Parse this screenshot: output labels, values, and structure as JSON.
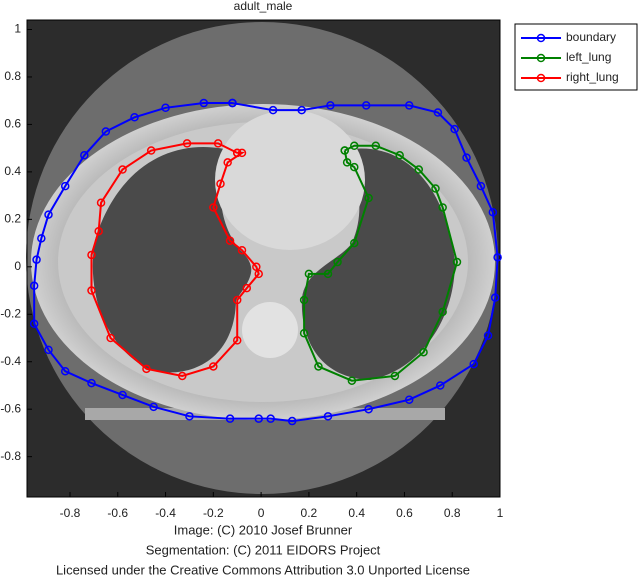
{
  "chart_data": {
    "type": "line",
    "title": "adult_male",
    "xlim": [
      -0.98,
      1
    ],
    "ylim": [
      -0.97,
      1.04
    ],
    "xticks": [
      -0.8,
      -0.6,
      -0.4,
      -0.2,
      0,
      0.2,
      0.4,
      0.6,
      0.8,
      1
    ],
    "yticks": [
      -0.8,
      -0.6,
      -0.4,
      -0.2,
      0,
      0.2,
      0.4,
      0.6,
      0.8,
      1
    ],
    "legend": "upper right",
    "series": [
      {
        "name": "boundary",
        "color": "#0000ff",
        "x": [
          -0.12,
          -0.24,
          -0.4,
          -0.53,
          -0.65,
          -0.74,
          -0.82,
          -0.89,
          -0.92,
          -0.94,
          -0.95,
          -0.95,
          -0.89,
          -0.82,
          -0.71,
          -0.58,
          -0.45,
          -0.3,
          -0.13,
          -0.01,
          0.04,
          0.13,
          0.28,
          0.45,
          0.62,
          0.75,
          0.89,
          0.95,
          0.98,
          0.99,
          0.97,
          0.92,
          0.86,
          0.81,
          0.74,
          0.62,
          0.44,
          0.29,
          0.17,
          0.05,
          -0.12
        ],
        "values": [
          0.69,
          0.69,
          0.67,
          0.63,
          0.57,
          0.47,
          0.34,
          0.22,
          0.12,
          0.03,
          -0.08,
          -0.24,
          -0.35,
          -0.44,
          -0.49,
          -0.54,
          -0.59,
          -0.63,
          -0.64,
          -0.64,
          -0.64,
          -0.65,
          -0.63,
          -0.6,
          -0.56,
          -0.5,
          -0.41,
          -0.29,
          -0.13,
          0.04,
          0.23,
          0.34,
          0.46,
          0.58,
          0.65,
          0.68,
          0.68,
          0.68,
          0.66,
          0.66,
          0.69
        ]
      },
      {
        "name": "left_lung",
        "color": "#008000",
        "x": [
          0.35,
          0.39,
          0.48,
          0.58,
          0.66,
          0.73,
          0.76,
          0.82,
          0.76,
          0.68,
          0.56,
          0.38,
          0.24,
          0.18,
          0.18,
          0.2,
          0.28,
          0.32,
          0.39,
          0.45,
          0.39,
          0.36,
          0.35
        ],
        "values": [
          0.49,
          0.51,
          0.51,
          0.47,
          0.41,
          0.33,
          0.25,
          0.02,
          -0.19,
          -0.36,
          -0.46,
          -0.48,
          -0.42,
          -0.28,
          -0.14,
          -0.03,
          -0.03,
          0.02,
          0.1,
          0.29,
          0.42,
          0.44,
          0.49
        ]
      },
      {
        "name": "right_lung",
        "color": "#ff0000",
        "x": [
          -0.1,
          -0.18,
          -0.31,
          -0.46,
          -0.58,
          -0.67,
          -0.68,
          -0.71,
          -0.71,
          -0.63,
          -0.48,
          -0.33,
          -0.2,
          -0.1,
          -0.1,
          -0.06,
          -0.01,
          -0.02,
          -0.08,
          -0.13,
          -0.2,
          -0.17,
          -0.14,
          -0.08,
          -0.1
        ],
        "values": [
          0.48,
          0.52,
          0.52,
          0.49,
          0.41,
          0.27,
          0.15,
          0.05,
          -0.1,
          -0.3,
          -0.43,
          -0.46,
          -0.42,
          -0.31,
          -0.14,
          -0.09,
          -0.03,
          0.0,
          0.07,
          0.11,
          0.25,
          0.35,
          0.44,
          0.48,
          0.48
        ]
      }
    ],
    "footer": [
      "Image: (C) 2010 Josef Brunner",
      "Segmentation: (C) 2011 EIDORS Project",
      "Licensed under the Creative Commons Attribution 3.0 Unported License"
    ]
  }
}
